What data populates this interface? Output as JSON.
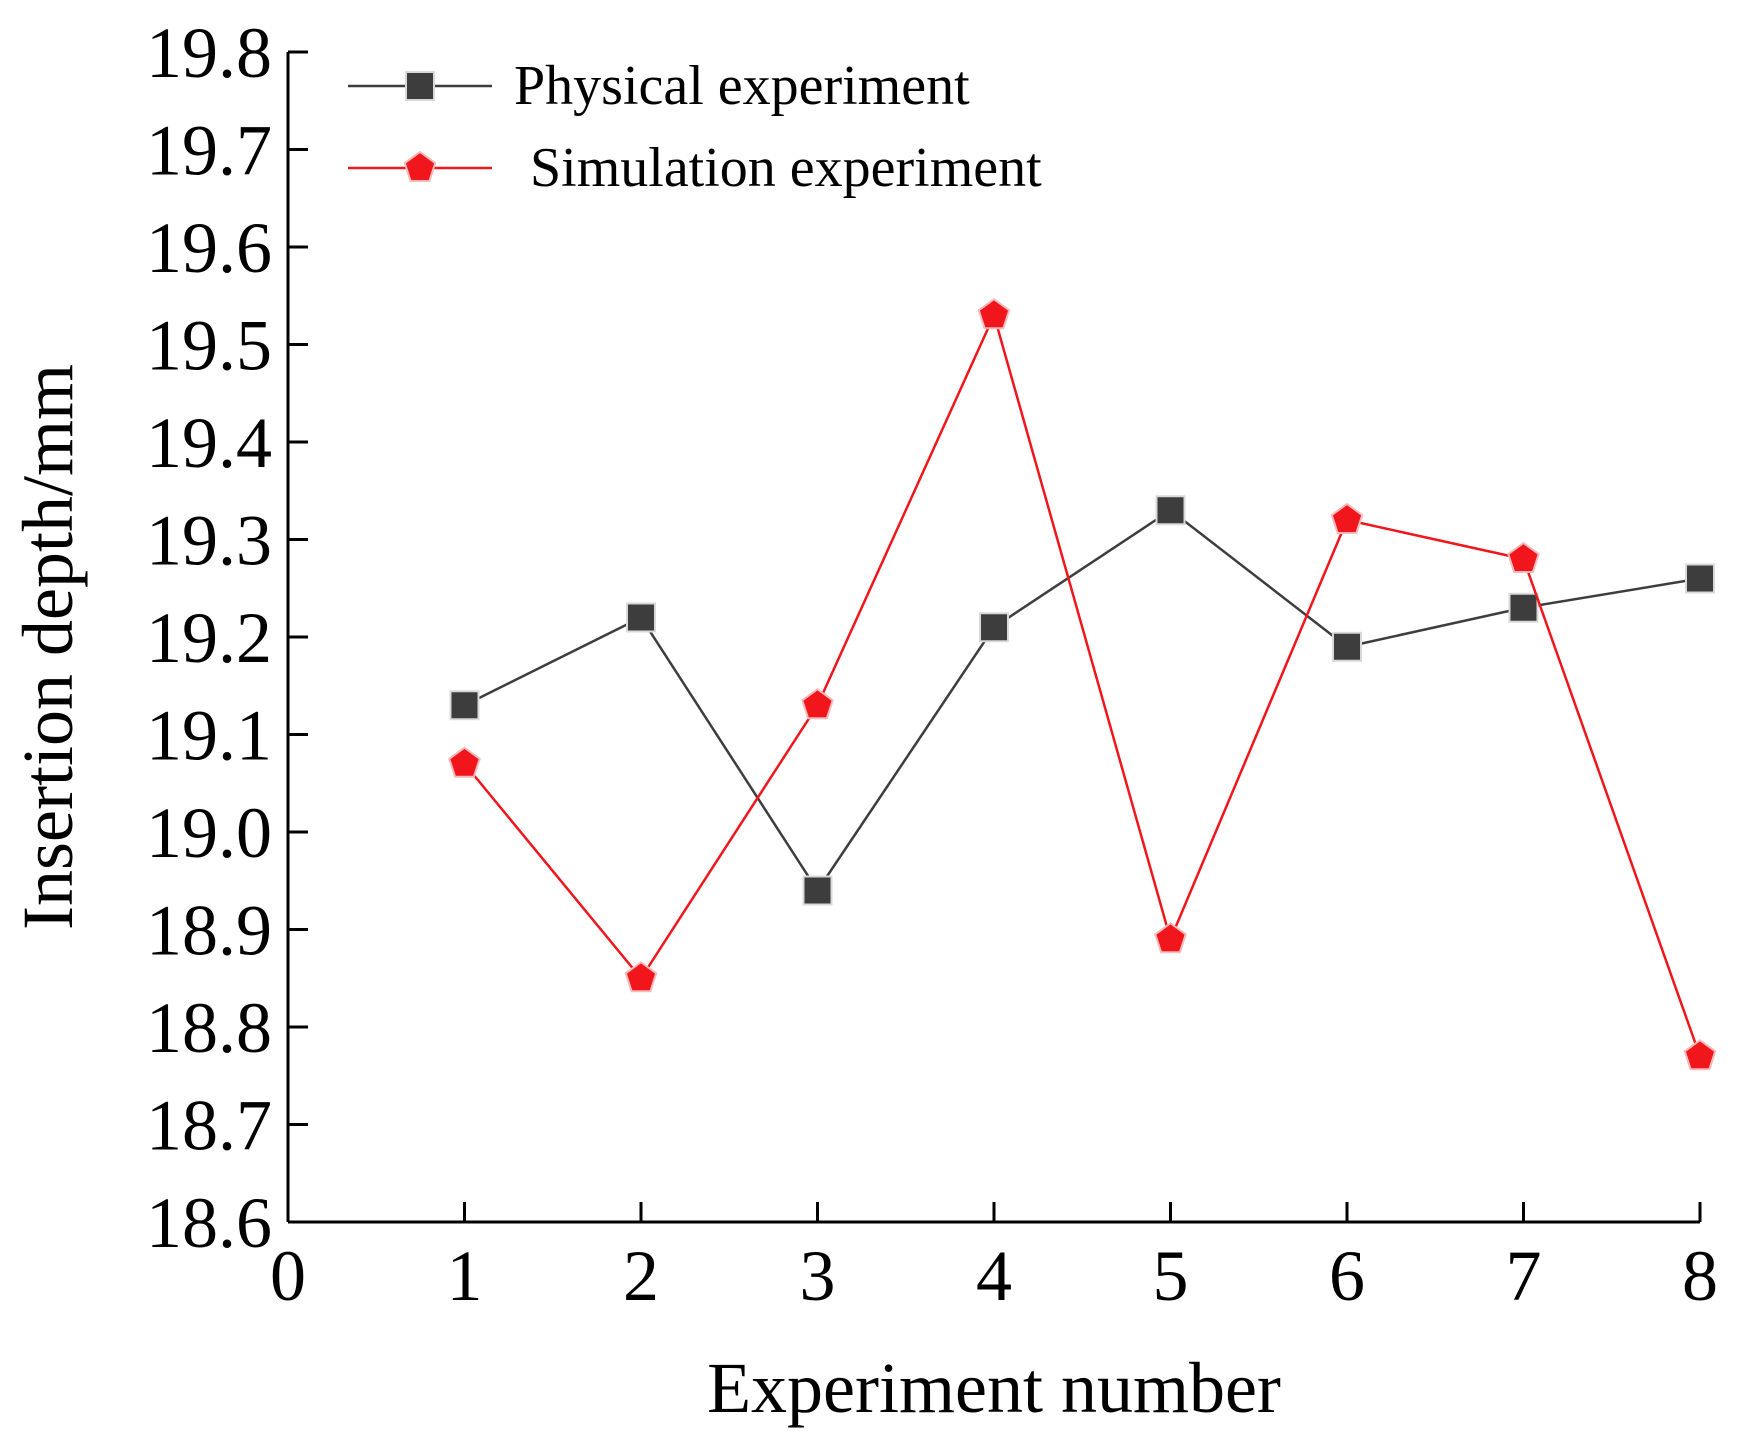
{
  "chart_data": {
    "type": "line",
    "xlabel": "Experiment number",
    "ylabel": "Insertion depth/mm",
    "xlim": [
      0,
      8
    ],
    "ylim": [
      18.6,
      19.8
    ],
    "x_ticks": [
      "0",
      "1",
      "2",
      "3",
      "4",
      "5",
      "6",
      "7",
      "8"
    ],
    "y_ticks": [
      "18.6",
      "18.7",
      "18.8",
      "18.9",
      "19.0",
      "19.1",
      "19.2",
      "19.3",
      "19.4",
      "19.5",
      "19.6",
      "19.7",
      "19.8"
    ],
    "x": [
      1,
      2,
      3,
      4,
      5,
      6,
      7,
      8
    ],
    "series": [
      {
        "name": "Physical experiment",
        "color": "#3d3d3d",
        "marker": "square",
        "values": [
          19.13,
          19.22,
          18.94,
          19.21,
          19.33,
          19.19,
          19.23,
          19.26
        ]
      },
      {
        "name": "Simulation experiment",
        "color": "#f0161c",
        "marker": "pentagon",
        "values": [
          19.07,
          18.85,
          19.13,
          19.53,
          18.89,
          19.32,
          19.28,
          18.77
        ]
      }
    ],
    "legend_position": "top-left",
    "grid": false
  }
}
